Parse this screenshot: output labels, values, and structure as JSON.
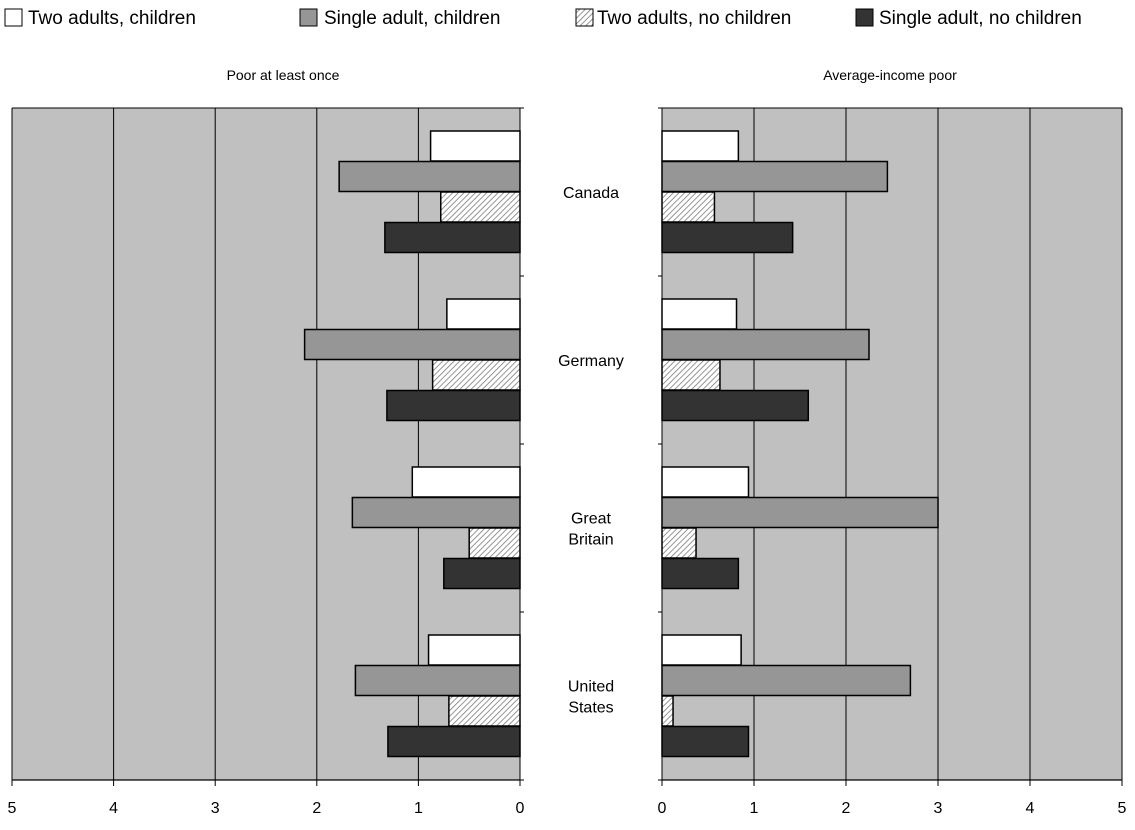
{
  "chart_data": [
    {
      "type": "bar",
      "orientation": "horizontal",
      "axis_direction": "reversed",
      "title": "Poor at least once",
      "categories": [
        "Canada",
        "Germany",
        "Great Britain",
        "United States"
      ],
      "series": [
        {
          "name": "Two adults, children",
          "values": [
            0.88,
            0.72,
            1.06,
            0.9
          ]
        },
        {
          "name": "Single adult, children",
          "values": [
            1.78,
            2.12,
            1.65,
            1.62
          ]
        },
        {
          "name": "Two adults, no children",
          "values": [
            0.78,
            0.86,
            0.5,
            0.7
          ]
        },
        {
          "name": "Single adult, no children",
          "values": [
            1.33,
            1.31,
            0.75,
            1.3
          ]
        }
      ],
      "xlim": [
        5,
        0
      ],
      "x_ticks": [
        "5",
        "4",
        "3",
        "2",
        "1",
        "0"
      ],
      "grid": true
    },
    {
      "type": "bar",
      "orientation": "horizontal",
      "title": "Average-income poor",
      "categories": [
        "Canada",
        "Germany",
        "Great Britain",
        "United States"
      ],
      "series": [
        {
          "name": "Two adults, children",
          "values": [
            0.83,
            0.81,
            0.94,
            0.86
          ]
        },
        {
          "name": "Single adult, children",
          "values": [
            2.45,
            2.25,
            3.0,
            2.7
          ]
        },
        {
          "name": "Two adults, no children",
          "values": [
            0.57,
            0.63,
            0.37,
            0.12
          ]
        },
        {
          "name": "Single adult, no children",
          "values": [
            1.42,
            1.59,
            0.83,
            0.94
          ]
        }
      ],
      "xlim": [
        0,
        5
      ],
      "x_ticks": [
        "0",
        "1",
        "2",
        "3",
        "4",
        "5"
      ],
      "grid": true
    }
  ],
  "category_labels": [
    {
      "lines": [
        "Canada"
      ]
    },
    {
      "lines": [
        "Germany"
      ]
    },
    {
      "lines": [
        "Great",
        "Britain"
      ]
    },
    {
      "lines": [
        "United",
        "States"
      ]
    }
  ],
  "legend": {
    "placement": "top",
    "items": [
      {
        "label": "Two adults, children",
        "fill": "#ffffff",
        "pattern": "none"
      },
      {
        "label": "Single adult, children",
        "fill": "#969696",
        "pattern": "none"
      },
      {
        "label": "Two adults, no children",
        "fill": "#ffffff",
        "pattern": "diagonal"
      },
      {
        "label": "Single adult, no children",
        "fill": "#333333",
        "pattern": "none"
      }
    ]
  },
  "colors": {
    "plot_bg": "#c0c0c0",
    "gridline": "#000000",
    "series": [
      "#ffffff",
      "#969696",
      "hatch",
      "#333333"
    ]
  }
}
